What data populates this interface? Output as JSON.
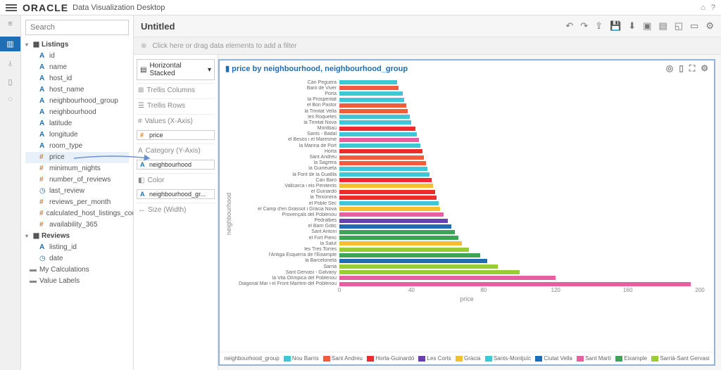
{
  "app": {
    "brand": "ORACLE",
    "product": "Data Visualization Desktop",
    "title": "Untitled"
  },
  "search": {
    "placeholder": "Search"
  },
  "filter_hint": "Click here or drag data elements to add a filter",
  "datasets": {
    "listings": {
      "label": "Listings",
      "fields": [
        {
          "t": "A",
          "l": "id"
        },
        {
          "t": "A",
          "l": "name"
        },
        {
          "t": "A",
          "l": "host_id"
        },
        {
          "t": "A",
          "l": "host_name"
        },
        {
          "t": "A",
          "l": "neighbourhood_group"
        },
        {
          "t": "A",
          "l": "neighbourhood"
        },
        {
          "t": "A",
          "l": "latitude"
        },
        {
          "t": "A",
          "l": "longitude"
        },
        {
          "t": "A",
          "l": "room_type"
        },
        {
          "t": "H",
          "l": "price",
          "hl": true
        },
        {
          "t": "H",
          "l": "minimum_nights"
        },
        {
          "t": "H",
          "l": "number_of_reviews"
        },
        {
          "t": "C",
          "l": "last_review"
        },
        {
          "t": "H",
          "l": "reviews_per_month"
        },
        {
          "t": "H",
          "l": "calculated_host_listings_count"
        },
        {
          "t": "H",
          "l": "availability_365"
        }
      ]
    },
    "reviews": {
      "label": "Reviews",
      "fields": [
        {
          "t": "A",
          "l": "listing_id"
        },
        {
          "t": "C",
          "l": "date"
        }
      ]
    },
    "extras": [
      {
        "t": "F",
        "l": "My Calculations"
      },
      {
        "t": "F",
        "l": "Value Labels"
      }
    ]
  },
  "config": {
    "chart_type": "Horizontal Stacked",
    "trellis_cols": "Trellis Columns",
    "trellis_rows": "Trellis Rows",
    "values": "Values (X-Axis)",
    "values_pill": "price",
    "category": "Category (Y-Axis)",
    "category_pill": "neighbourhood",
    "color": "Color",
    "color_pill": "neighbourhood_gr...",
    "size": "Size (Width)"
  },
  "chart": {
    "title": "price by neighbourhood, neighbourhood_group",
    "y_label": "neighbourhood",
    "x_label": "price",
    "x_max": 200,
    "x_ticks": [
      0,
      40,
      80,
      120,
      160,
      200
    ],
    "legend_title": "neighbourhood_group",
    "legend": [
      {
        "l": "Nou Barris",
        "c": "#3fc6d8"
      },
      {
        "l": "Sant Andreu",
        "c": "#f25c3b"
      },
      {
        "l": "Horta-Guinardó",
        "c": "#ed2b2b"
      },
      {
        "l": "Les Corts",
        "c": "#6a3fb5"
      },
      {
        "l": "Gràcia",
        "c": "#f5c02e"
      },
      {
        "l": "Sants-Montjuïc",
        "c": "#3fc6d8"
      },
      {
        "l": "Ciutat Vella",
        "c": "#1f6db5"
      },
      {
        "l": "Sant Martí",
        "c": "#e85fa0"
      },
      {
        "l": "Eixample",
        "c": "#3aa655"
      },
      {
        "l": "Sarrià-Sant Gervasi",
        "c": "#9acd32"
      }
    ],
    "bars": [
      {
        "l": "Can Peguera",
        "v": 32,
        "c": "#3fc6d8"
      },
      {
        "l": "Baró de Viver",
        "v": 33,
        "c": "#f25c3b"
      },
      {
        "l": "Porta",
        "v": 35,
        "c": "#3fc6d8"
      },
      {
        "l": "la Prosperitat",
        "v": 36,
        "c": "#3fc6d8"
      },
      {
        "l": "el Bon Pastor",
        "v": 37,
        "c": "#f25c3b"
      },
      {
        "l": "la Trinitat Vella",
        "v": 38,
        "c": "#f25c3b"
      },
      {
        "l": "les Roquetes",
        "v": 39,
        "c": "#3fc6d8"
      },
      {
        "l": "la Trinitat Nova",
        "v": 40,
        "c": "#3fc6d8"
      },
      {
        "l": "Montbau",
        "v": 42,
        "c": "#ed2b2b"
      },
      {
        "l": "Sants - Badal",
        "v": 43,
        "c": "#3fc6d8"
      },
      {
        "l": "el Besòs i el Maresme",
        "v": 44,
        "c": "#e85fa0"
      },
      {
        "l": "la Marina de Port",
        "v": 45,
        "c": "#3fc6d8"
      },
      {
        "l": "Horta",
        "v": 46,
        "c": "#ed2b2b"
      },
      {
        "l": "Sant Andreu",
        "v": 47,
        "c": "#f25c3b"
      },
      {
        "l": "la Sagrera",
        "v": 48,
        "c": "#f25c3b"
      },
      {
        "l": "la Guineueta",
        "v": 49,
        "c": "#3fc6d8"
      },
      {
        "l": "la Font de la Guatlla",
        "v": 50,
        "c": "#3fc6d8"
      },
      {
        "l": "Can Baró",
        "v": 51,
        "c": "#ed2b2b"
      },
      {
        "l": "Vallcarca i els Penitents",
        "v": 52,
        "c": "#f5c02e"
      },
      {
        "l": "el Guinardó",
        "v": 53,
        "c": "#ed2b2b"
      },
      {
        "l": "la Teixonera",
        "v": 54,
        "c": "#ed2b2b"
      },
      {
        "l": "el Poble Sec",
        "v": 55,
        "c": "#3fc6d8"
      },
      {
        "l": "el Camp d'en Grassot i Gràcia Nova",
        "v": 56,
        "c": "#f5c02e"
      },
      {
        "l": "Provençals del Poblenou",
        "v": 58,
        "c": "#e85fa0"
      },
      {
        "l": "Pedralbes",
        "v": 60,
        "c": "#6a3fb5"
      },
      {
        "l": "el Barri Gòtic",
        "v": 62,
        "c": "#1f6db5"
      },
      {
        "l": "Sant Antoni",
        "v": 64,
        "c": "#3aa655"
      },
      {
        "l": "el Fort Pienc",
        "v": 66,
        "c": "#3aa655"
      },
      {
        "l": "la Salut",
        "v": 68,
        "c": "#f5c02e"
      },
      {
        "l": "les Tres Torres",
        "v": 72,
        "c": "#9acd32"
      },
      {
        "l": "l'Antiga Esquerra de l'Eixample",
        "v": 78,
        "c": "#3aa655"
      },
      {
        "l": "la Barceloneta",
        "v": 82,
        "c": "#1f6db5"
      },
      {
        "l": "Sarrià",
        "v": 88,
        "c": "#9acd32"
      },
      {
        "l": "Sant Gervasi - Galvany",
        "v": 100,
        "c": "#9acd32"
      },
      {
        "l": "la Vila Olímpica del Poblenou",
        "v": 120,
        "c": "#e85fa0"
      },
      {
        "l": "Diagonal Mar i el Front Marítim del Poblenou",
        "v": 195,
        "c": "#e85fa0"
      }
    ]
  }
}
